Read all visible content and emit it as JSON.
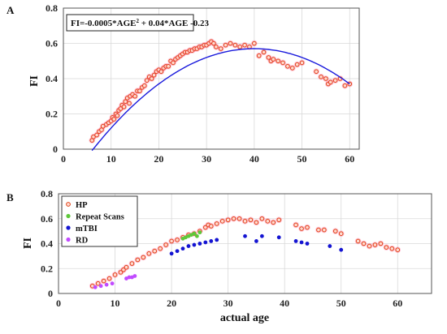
{
  "colors": {
    "fit_line": "#1a1adc",
    "hp_edge": "#e0451a",
    "hp_fill": "#ffd9cf",
    "hp_halo": "#ff5a8a",
    "repeat": "#5ec83a",
    "mtbi": "#1414d2",
    "rd": "#c14bff",
    "grid": "#d9d9d9"
  },
  "chart_data": [
    {
      "type": "scatter",
      "panel_label": "A",
      "xlabel": "",
      "ylabel": "FI",
      "xlim": [
        0,
        62
      ],
      "ylim": [
        0,
        0.8
      ],
      "xticks": [
        "0",
        "10",
        "20",
        "30",
        "40",
        "50",
        "60"
      ],
      "yticks": [
        "0",
        "0.2",
        "0.4",
        "0.6",
        "0.8"
      ],
      "grid": true,
      "annotation": "FI=-0.0005*AGE",
      "annotation_sup": "2",
      "annotation_rest": " + 0.04*AGE -0.23",
      "fit": {
        "a": -0.0005,
        "b": 0.04,
        "c": -0.23,
        "x_range": [
          6,
          60
        ]
      },
      "series": [
        {
          "marker": "hollow-circle",
          "x": [
            6,
            6.3,
            7,
            7.5,
            8,
            8.3,
            9,
            9.5,
            10,
            10.3,
            10.6,
            11,
            11.3,
            11.6,
            12,
            12.3,
            12.7,
            13,
            13.4,
            13.8,
            14,
            14.5,
            15,
            15.5,
            16,
            16.5,
            17,
            17.5,
            18,
            18.5,
            19,
            19.5,
            20,
            20.5,
            21,
            21.5,
            22,
            22.5,
            23,
            23.5,
            24,
            24.5,
            25,
            25.5,
            26,
            26.5,
            27,
            27.5,
            28,
            28.5,
            29,
            29.5,
            30,
            30.5,
            31,
            31.5,
            32,
            33,
            34,
            35,
            36,
            37,
            38,
            39,
            40,
            41,
            42,
            43,
            43.5,
            44,
            45,
            46,
            47,
            48,
            49,
            50,
            53,
            54,
            55,
            55.5,
            56,
            57,
            58,
            59,
            60
          ],
          "y": [
            0.05,
            0.07,
            0.08,
            0.1,
            0.11,
            0.13,
            0.14,
            0.15,
            0.16,
            0.18,
            0.17,
            0.2,
            0.19,
            0.22,
            0.23,
            0.25,
            0.24,
            0.27,
            0.29,
            0.26,
            0.3,
            0.31,
            0.3,
            0.33,
            0.33,
            0.35,
            0.36,
            0.39,
            0.41,
            0.4,
            0.42,
            0.44,
            0.45,
            0.44,
            0.46,
            0.47,
            0.47,
            0.5,
            0.49,
            0.51,
            0.52,
            0.53,
            0.54,
            0.55,
            0.55,
            0.56,
            0.56,
            0.57,
            0.57,
            0.58,
            0.58,
            0.59,
            0.59,
            0.6,
            0.61,
            0.6,
            0.58,
            0.57,
            0.59,
            0.6,
            0.59,
            0.58,
            0.59,
            0.58,
            0.6,
            0.53,
            0.55,
            0.52,
            0.5,
            0.51,
            0.5,
            0.49,
            0.47,
            0.46,
            0.48,
            0.49,
            0.44,
            0.41,
            0.4,
            0.37,
            0.38,
            0.39,
            0.4,
            0.36,
            0.37
          ]
        }
      ]
    },
    {
      "type": "scatter",
      "panel_label": "B",
      "xlabel": "actual age",
      "ylabel": "FI",
      "xlim": [
        0,
        66
      ],
      "ylim": [
        0,
        0.8
      ],
      "xticks": [
        "0",
        "10",
        "20",
        "30",
        "40",
        "50",
        "60"
      ],
      "yticks": [
        "0",
        "0.2",
        "0.4",
        "0.6",
        "0.8"
      ],
      "grid": true,
      "legend_position": "top-left",
      "series": [
        {
          "name": "HP",
          "marker": "hollow-circle",
          "x": [
            6,
            7,
            8,
            9,
            10,
            11,
            11.5,
            12,
            13,
            14,
            15,
            16,
            17,
            18,
            19,
            20,
            21,
            22,
            23,
            24,
            25,
            26,
            26.5,
            27,
            28,
            29,
            30,
            31,
            32,
            33,
            34,
            35,
            36,
            37,
            38,
            39,
            42,
            43,
            44,
            46,
            47,
            49,
            50,
            53,
            54,
            55,
            56,
            57,
            58,
            59,
            60
          ],
          "y": [
            0.06,
            0.08,
            0.1,
            0.12,
            0.15,
            0.17,
            0.19,
            0.21,
            0.24,
            0.27,
            0.29,
            0.32,
            0.34,
            0.36,
            0.39,
            0.42,
            0.43,
            0.45,
            0.47,
            0.48,
            0.5,
            0.53,
            0.55,
            0.54,
            0.56,
            0.58,
            0.59,
            0.6,
            0.6,
            0.58,
            0.59,
            0.57,
            0.6,
            0.58,
            0.57,
            0.59,
            0.55,
            0.52,
            0.53,
            0.51,
            0.51,
            0.5,
            0.48,
            0.42,
            0.4,
            0.38,
            0.39,
            0.4,
            0.37,
            0.36,
            0.35
          ]
        },
        {
          "name": "Repeat Scans",
          "marker": "filled-circle",
          "x": [
            22,
            22.5,
            23,
            23.5,
            24,
            24.5,
            25
          ],
          "y": [
            0.44,
            0.45,
            0.46,
            0.47,
            0.48,
            0.46,
            0.49
          ]
        },
        {
          "name": "mTBI",
          "marker": "filled-circle",
          "x": [
            20,
            21,
            22,
            23,
            24,
            25,
            26,
            27,
            28,
            33,
            35,
            36,
            39,
            42,
            43,
            44,
            48,
            50
          ],
          "y": [
            0.32,
            0.34,
            0.36,
            0.38,
            0.39,
            0.4,
            0.41,
            0.42,
            0.43,
            0.46,
            0.42,
            0.46,
            0.45,
            0.42,
            0.41,
            0.4,
            0.38,
            0.35
          ]
        },
        {
          "name": "RD",
          "marker": "filled-circle",
          "x": [
            6.5,
            7.5,
            8.5,
            9.5,
            12,
            12.5,
            13,
            13.5
          ],
          "y": [
            0.05,
            0.06,
            0.07,
            0.08,
            0.12,
            0.13,
            0.13,
            0.14
          ]
        }
      ]
    }
  ]
}
